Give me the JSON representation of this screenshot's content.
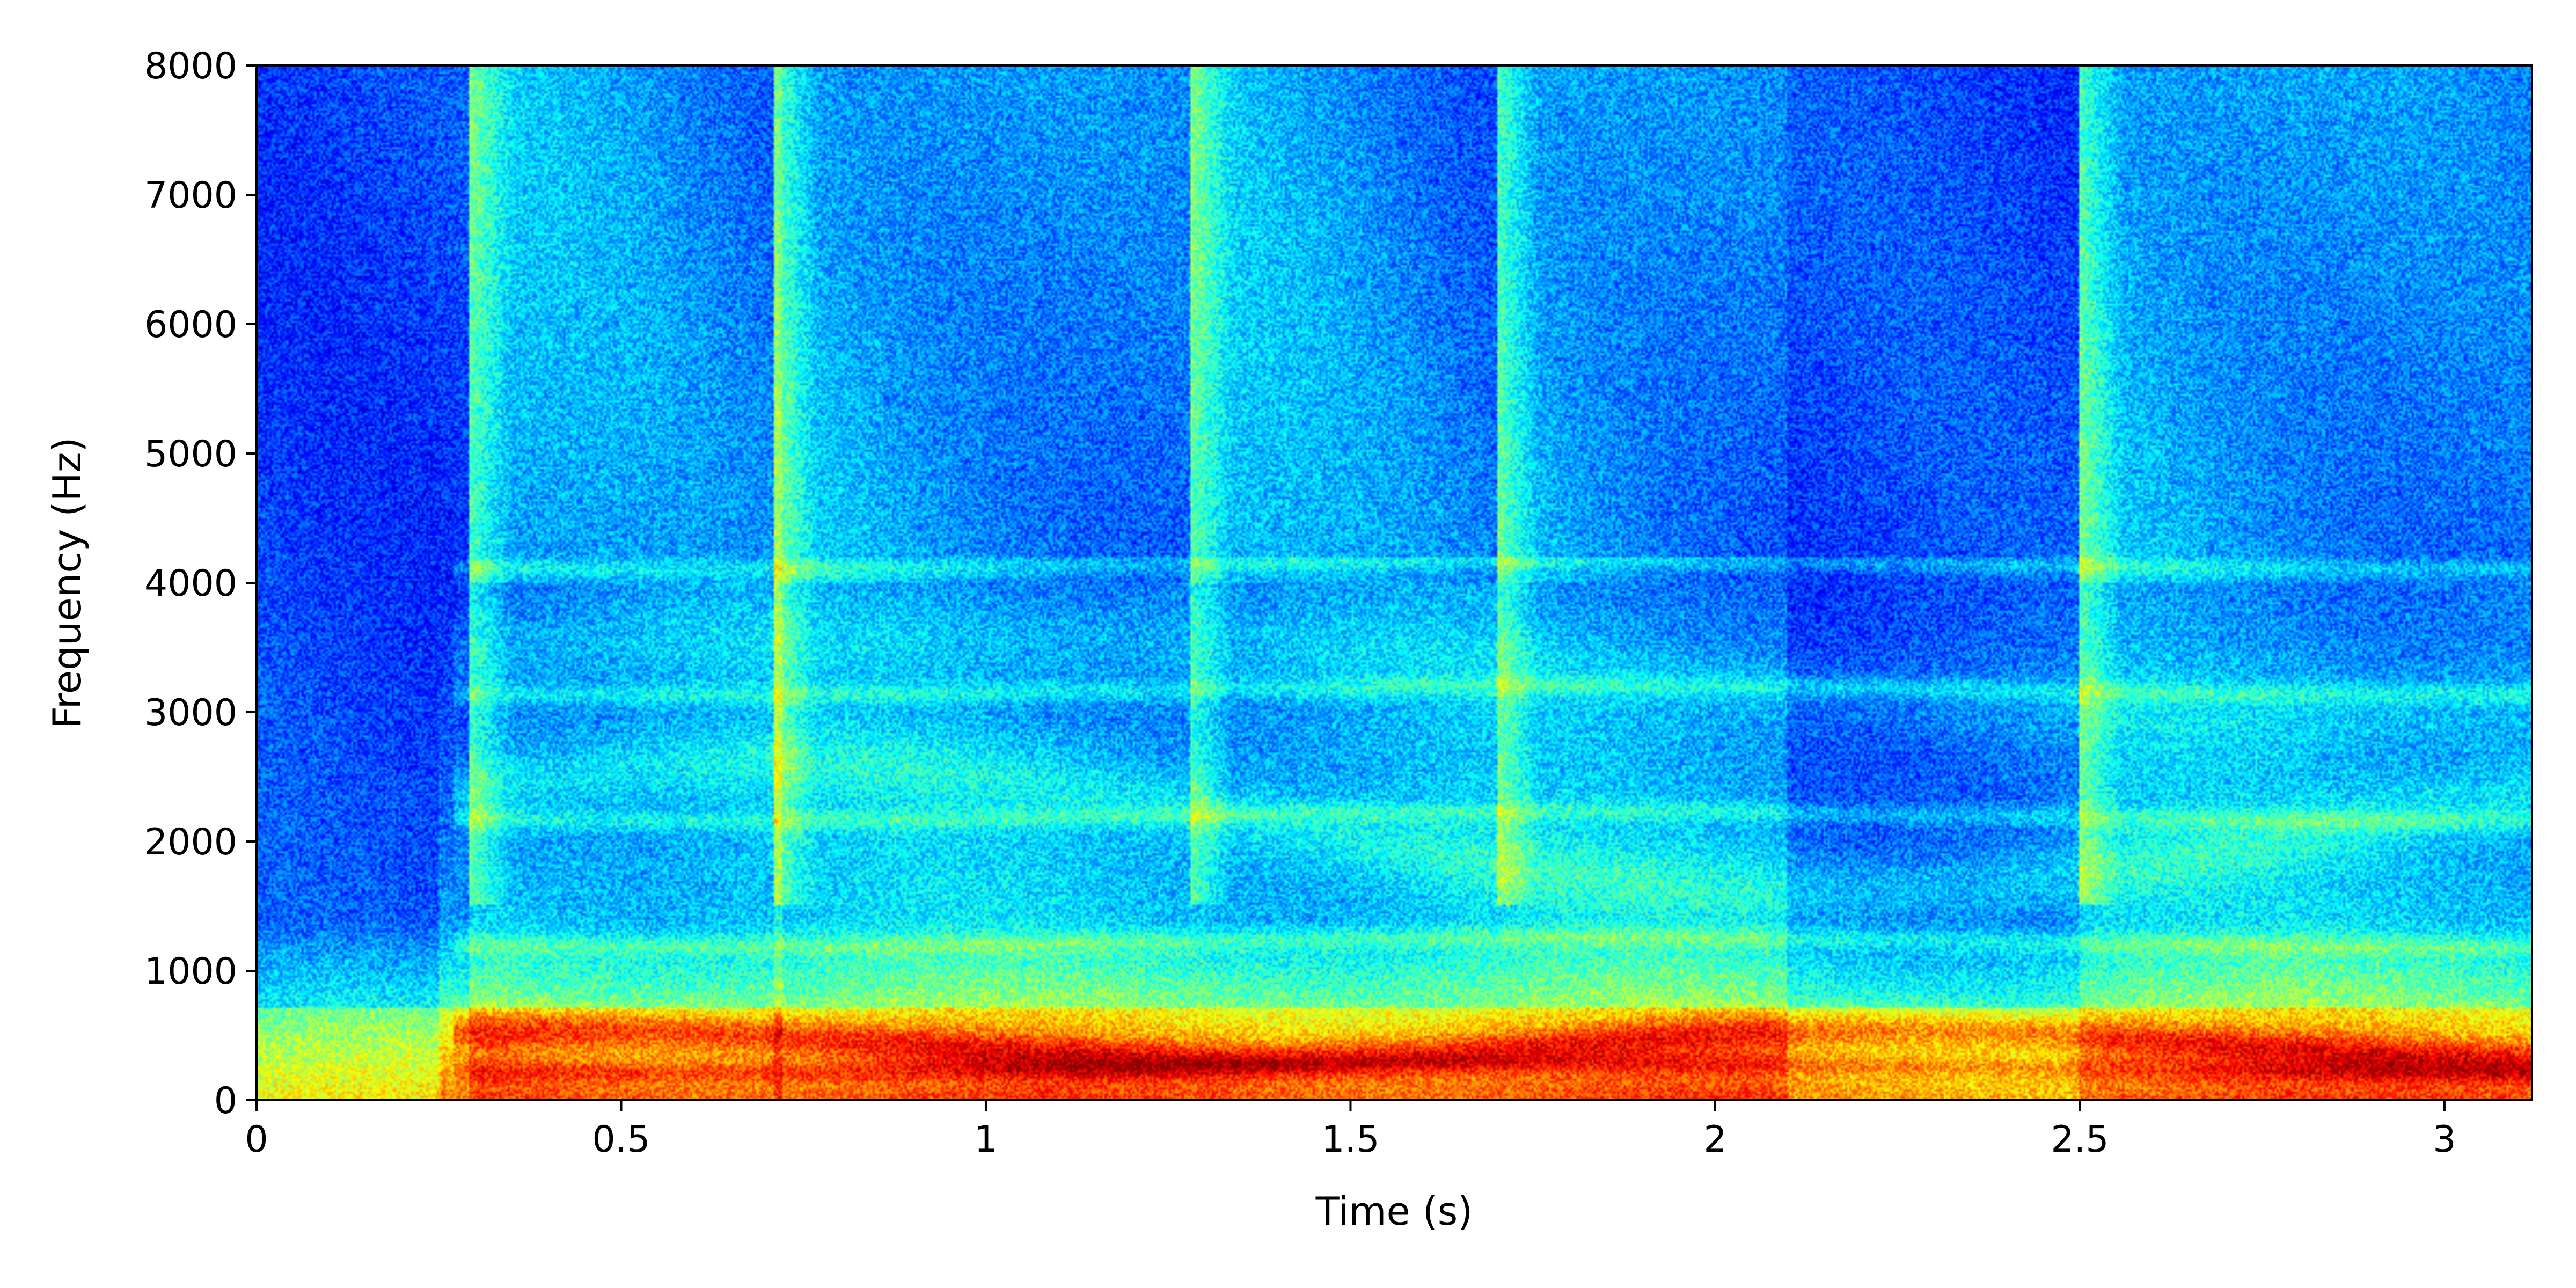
{
  "chart_data": {
    "type": "heatmap",
    "title": "",
    "xlabel": "Time (s)",
    "ylabel": "Frequency (Hz)",
    "xlim": [
      0,
      3.12
    ],
    "ylim": [
      0,
      8000
    ],
    "x_ticks": [
      0,
      0.5,
      1,
      1.5,
      2,
      2.5,
      3
    ],
    "x_tick_labels": [
      "0",
      "0.5",
      "1",
      "1.5",
      "2",
      "2.5",
      "3"
    ],
    "y_ticks": [
      0,
      1000,
      2000,
      3000,
      4000,
      5000,
      6000,
      7000,
      8000
    ],
    "y_tick_labels": [
      "0",
      "1000",
      "2000",
      "3000",
      "4000",
      "5000",
      "6000",
      "7000",
      "8000"
    ],
    "colormap": "jet",
    "grid": false,
    "legend": "none",
    "high_energy_onsets_s": [
      0.29,
      0.71,
      1.28,
      1.7,
      2.5
    ],
    "broadband_segments_s": [
      [
        0.29,
        0.72
      ],
      [
        0.71,
        1.28
      ],
      [
        1.28,
        1.7
      ],
      [
        1.7,
        2.1
      ],
      [
        2.5,
        3.12
      ]
    ],
    "strong_energy_band_hz": [
      0,
      1400
    ],
    "colors": {
      "low": "#00008f",
      "mid_low": "#00a0ff",
      "mid": "#40ffc0",
      "mid_high": "#ffff00",
      "high": "#ff4000"
    }
  }
}
